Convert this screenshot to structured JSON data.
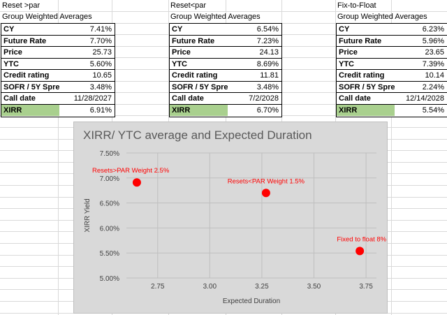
{
  "sections": [
    {
      "title": "Reset >par",
      "subtitle": "Group Weighted Averages",
      "rows": [
        {
          "label": "CY",
          "value": "7.41%"
        },
        {
          "label": "Future Rate",
          "value": "7.70%"
        },
        {
          "label": "Price",
          "value": "25.73"
        },
        {
          "label": "YTC",
          "value": "5.60%"
        },
        {
          "label": "Credit rating",
          "value": "10.65"
        },
        {
          "label": "SOFR / 5Y Spre",
          "value": "3.48%"
        },
        {
          "label": "Call date",
          "value": "11/28/2027"
        },
        {
          "label": "XIRR",
          "value": "6.91%"
        }
      ]
    },
    {
      "title": "Reset<par",
      "subtitle": "Group Weighted Averages",
      "rows": [
        {
          "label": "CY",
          "value": "6.54%"
        },
        {
          "label": "Future Rate",
          "value": "7.23%"
        },
        {
          "label": "Price",
          "value": "24.13"
        },
        {
          "label": "YTC",
          "value": "8.69%"
        },
        {
          "label": "Credit rating",
          "value": "11.81"
        },
        {
          "label": "SOFR / 5Y Spre",
          "value": "3.48%"
        },
        {
          "label": "Call date",
          "value": "7/2/2028"
        },
        {
          "label": "XIRR",
          "value": "6.70%"
        }
      ]
    },
    {
      "title": "Fix-to-Float",
      "subtitle": "Group Weighted Averages",
      "rows": [
        {
          "label": "CY",
          "value": "6.23%"
        },
        {
          "label": "Future Rate",
          "value": "5.96%"
        },
        {
          "label": "Price",
          "value": "23.65"
        },
        {
          "label": "YTC",
          "value": "7.39%"
        },
        {
          "label": "Credit rating",
          "value": "10.14"
        },
        {
          "label": "SOFR / 5Y Spre",
          "value": "2.24%"
        },
        {
          "label": "Call date",
          "value": "12/14/2028"
        },
        {
          "label": "XIRR",
          "value": "5.54%"
        }
      ]
    }
  ],
  "colors": {
    "xirr_highlight": "#a9d08e",
    "chart_background": "#d9d9d9",
    "marker": "#ff0000",
    "gridline": "#bfbfbf"
  },
  "chart_data": {
    "type": "scatter",
    "title": "XIRR/ YTC average and Expected Duration",
    "xlabel": "Expected Duration",
    "ylabel": "XIRR Yield",
    "xlim": [
      2.6,
      3.8
    ],
    "ylim": [
      5.0,
      7.5
    ],
    "x_ticks": [
      "2.75",
      "3.00",
      "3.25",
      "3.50",
      "3.75"
    ],
    "y_ticks": [
      "5.00%",
      "5.50%",
      "6.00%",
      "6.50%",
      "7.00%",
      "7.50%"
    ],
    "grid": true,
    "points": [
      {
        "x": 2.65,
        "y": 6.91,
        "label": "Resets>PAR Weight 2.5%"
      },
      {
        "x": 3.27,
        "y": 6.7,
        "label": "Resets<PAR Weight 1.5%"
      },
      {
        "x": 3.72,
        "y": 5.54,
        "label": "Fixed to float  8%"
      }
    ]
  }
}
